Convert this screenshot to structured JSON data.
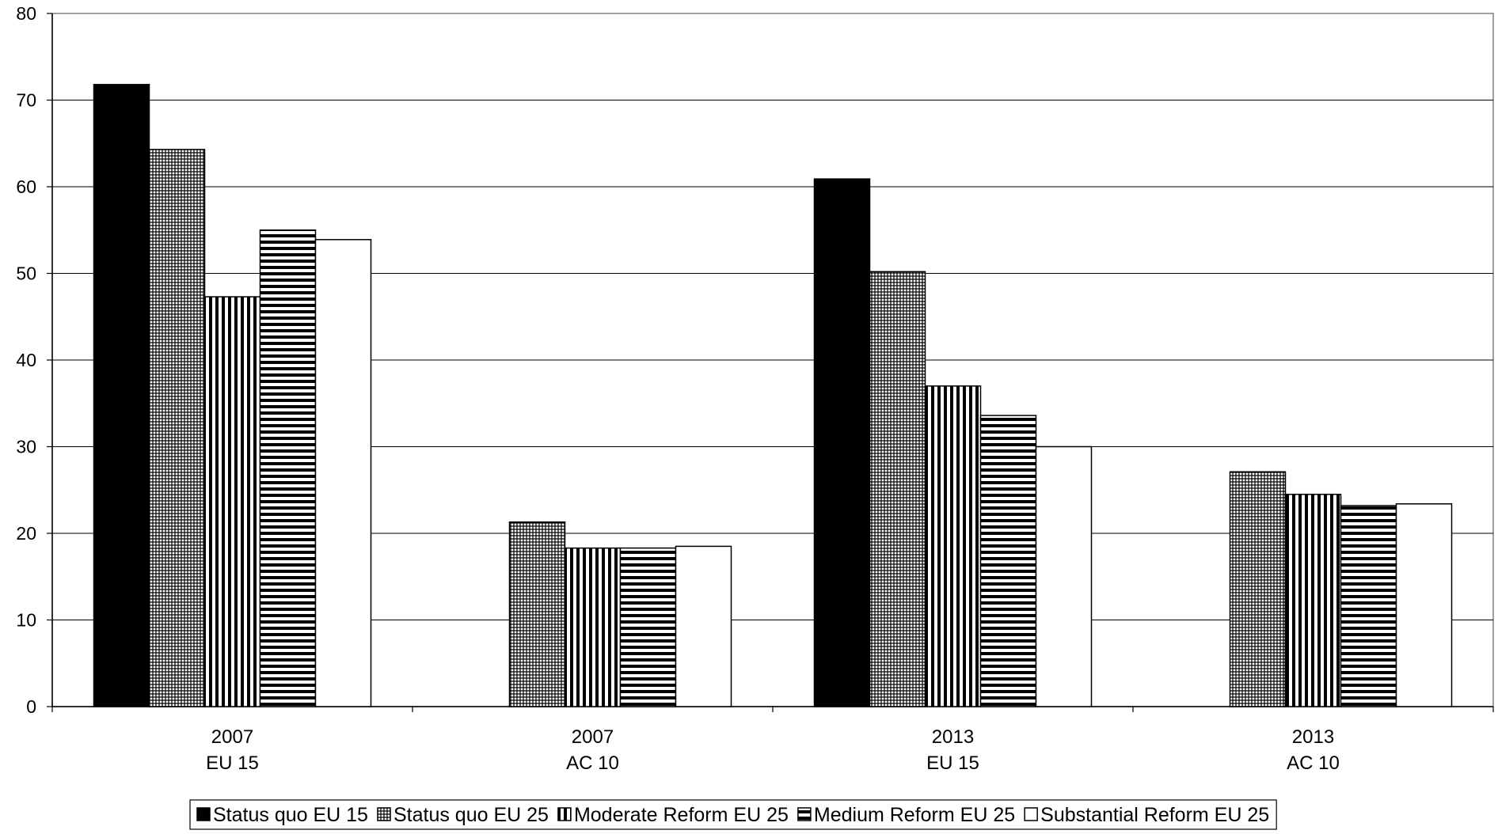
{
  "chart_data": {
    "type": "bar",
    "title": "",
    "xlabel": "",
    "ylabel": "",
    "ylim": [
      0,
      80
    ],
    "yticks": [
      "0",
      "10",
      "20",
      "30",
      "40",
      "50",
      "60",
      "70",
      "80"
    ],
    "grid": true,
    "legend_position": "bottom",
    "categories": [
      [
        "2007",
        "EU 15"
      ],
      [
        "2007",
        "AC 10"
      ],
      [
        "2013",
        "EU 15"
      ],
      [
        "2013",
        "AC 10"
      ]
    ],
    "series": [
      {
        "name": "Status quo EU 15",
        "pattern": "solid",
        "values": [
          71.8,
          null,
          60.9,
          null
        ]
      },
      {
        "name": "Status quo EU 25",
        "pattern": "grid",
        "values": [
          64.3,
          21.3,
          50.2,
          27.1
        ]
      },
      {
        "name": "Moderate Reform EU 25",
        "pattern": "vertical",
        "values": [
          47.3,
          18.3,
          37.0,
          24.5
        ]
      },
      {
        "name": "Medium Reform EU 25",
        "pattern": "horizontal",
        "values": [
          55.0,
          18.3,
          33.6,
          23.2
        ]
      },
      {
        "name": "Substantial Reform EU 25",
        "pattern": "white",
        "values": [
          53.9,
          18.5,
          30.0,
          23.4
        ]
      }
    ]
  }
}
